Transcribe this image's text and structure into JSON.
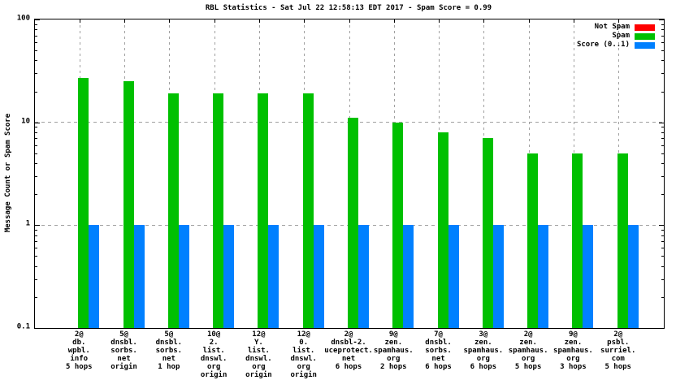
{
  "chart_data": {
    "type": "bar",
    "title": "RBL Statistics - Sat Jul 22 12:58:13 EDT 2017 - Spam Score = 0.99",
    "xlabel": "",
    "ylabel": "Message Count or Spam Score",
    "y_scale": "log",
    "ylim": [
      0.1,
      100
    ],
    "grid": true,
    "legend_position": "top-right",
    "y_ticks": [
      {
        "label": "100",
        "value": 100
      },
      {
        "label": "10",
        "value": 10
      },
      {
        "label": "1",
        "value": 1
      },
      {
        "label": "0.1",
        "value": 0.1
      }
    ],
    "categories": [
      [
        "2@",
        "db.",
        "wpbl.",
        "info",
        "5 hops"
      ],
      [
        "5@",
        "dnsbl.",
        "sorbs.",
        "net",
        "origin"
      ],
      [
        "5@",
        "dnsbl.",
        "sorbs.",
        "net",
        "1 hop"
      ],
      [
        "10@",
        "2.",
        "list.",
        "dnswl.",
        "org",
        "origin"
      ],
      [
        "12@",
        "Y.",
        "list.",
        "dnswl.",
        "org",
        "origin"
      ],
      [
        "12@",
        "0.",
        "list.",
        "dnswl.",
        "org",
        "origin"
      ],
      [
        "2@",
        "dnsbl-2.",
        "uceprotect.",
        "net",
        "6 hops"
      ],
      [
        "9@",
        "zen.",
        "spamhaus.",
        "org",
        "2 hops"
      ],
      [
        "7@",
        "dnsbl.",
        "sorbs.",
        "net",
        "6 hops"
      ],
      [
        "3@",
        "zen.",
        "spamhaus.",
        "org",
        "6 hops"
      ],
      [
        "2@",
        "zen.",
        "spamhaus.",
        "org",
        "5 hops"
      ],
      [
        "9@",
        "zen.",
        "spamhaus.",
        "org",
        "3 hops"
      ],
      [
        "2@",
        "psbl.",
        "surriel.",
        "com",
        "5 hops"
      ]
    ],
    "series": [
      {
        "name": "Not Spam",
        "color": "#ff0000",
        "values": [
          0,
          0,
          0,
          0,
          0,
          0,
          0,
          0,
          0,
          0,
          0,
          0,
          0
        ]
      },
      {
        "name": "Spam",
        "color": "#00c000",
        "values": [
          27,
          25,
          19,
          19,
          19,
          19,
          11,
          10,
          8,
          7,
          5,
          5,
          5
        ]
      },
      {
        "name": "Score (0..1)",
        "color": "#0080ff",
        "values": [
          1,
          1,
          1,
          1,
          1,
          1,
          1,
          1,
          1,
          1,
          1,
          1,
          1
        ]
      }
    ],
    "gridline_values": [
      10,
      1
    ],
    "colors": {
      "grid": "#a0a0a0",
      "border": "#000000",
      "background": "#ffffff"
    }
  }
}
